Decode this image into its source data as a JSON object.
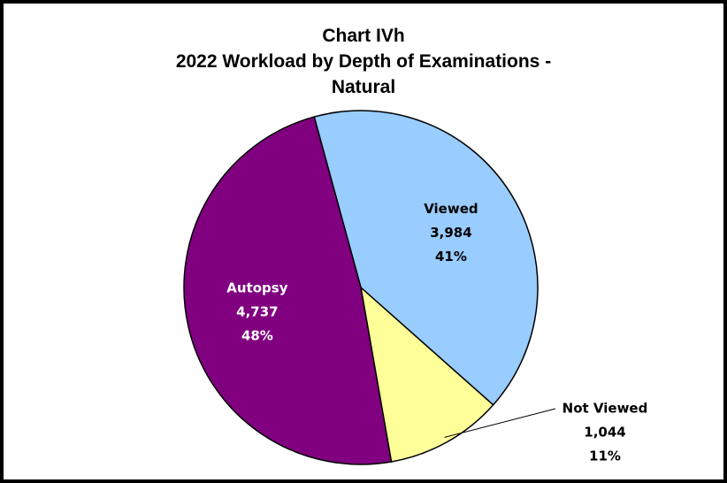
{
  "chart_data": {
    "type": "pie",
    "title": "Chart IVh",
    "subtitle": "2022 Workload by Depth of Examinations - Natural",
    "categories": [
      "Viewed",
      "Not Viewed",
      "Autopsy"
    ],
    "values": [
      3984,
      1044,
      4737
    ],
    "value_labels": [
      "3,984",
      "1,044",
      "4,737"
    ],
    "percent_labels": [
      "41%",
      "11%",
      "48%"
    ],
    "colors": [
      "#99ccff",
      "#ffff99",
      "#800080"
    ],
    "label_colors": [
      "#000000",
      "#000000",
      "#ffffff"
    ]
  }
}
